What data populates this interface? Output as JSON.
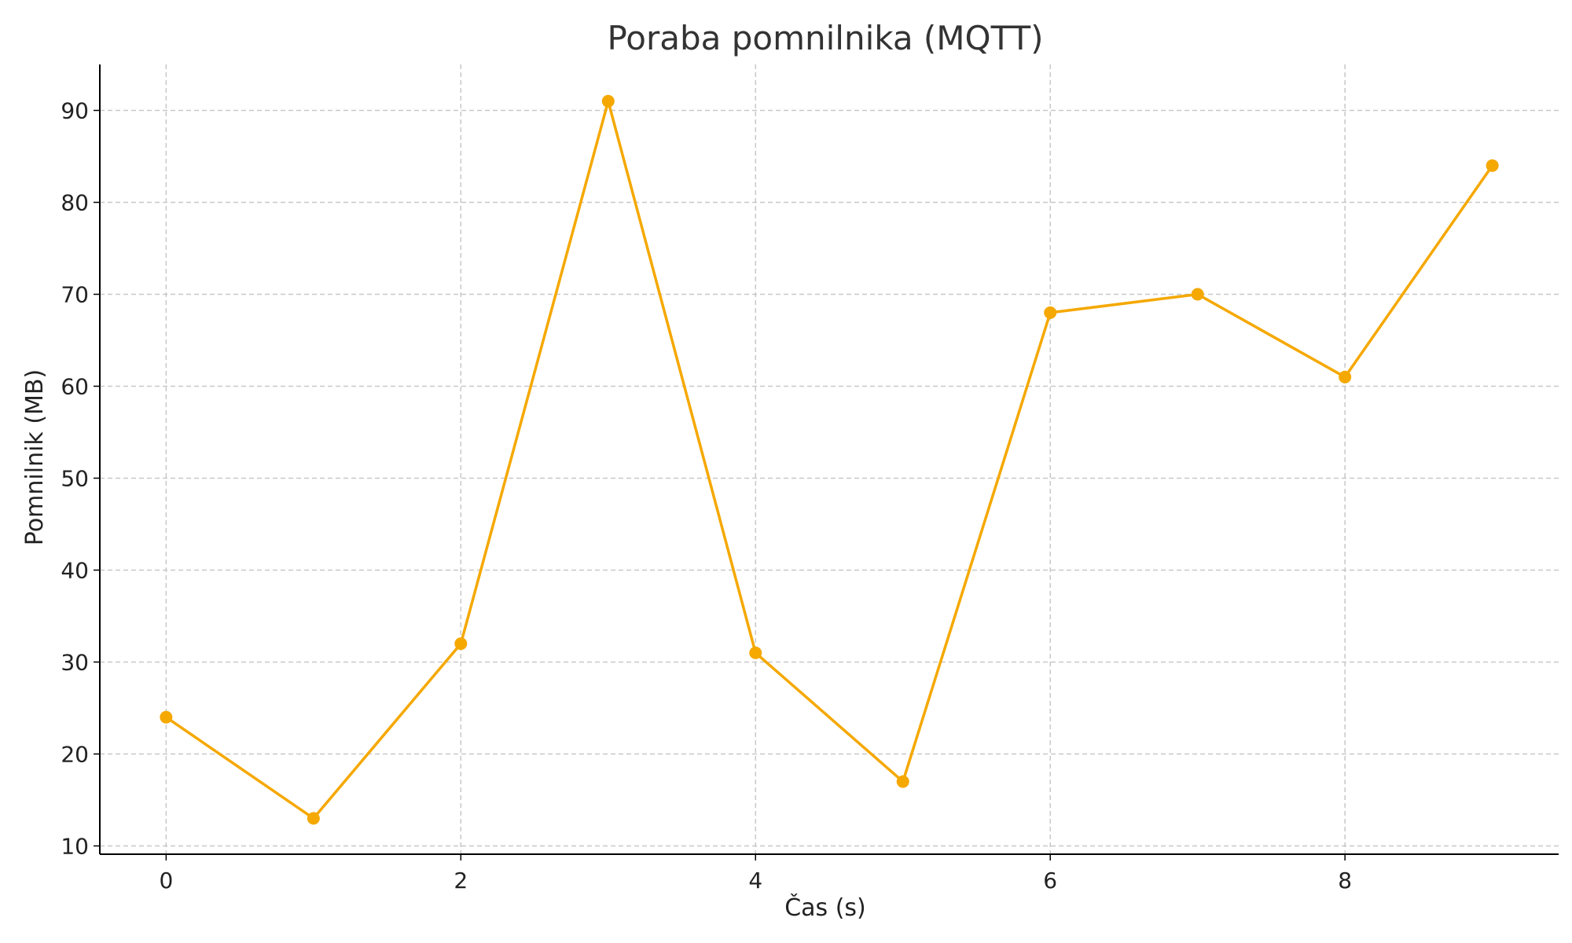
{
  "chart_data": {
    "type": "line",
    "title": "Poraba pomnilnika (MQTT)",
    "xlabel": "Čas (s)",
    "ylabel": "Pomnilnik (MB)",
    "x": [
      0,
      1,
      2,
      3,
      4,
      5,
      6,
      7,
      8,
      9
    ],
    "series": [
      {
        "values": [
          24,
          13,
          32,
          91,
          31,
          17,
          68,
          70,
          61,
          84
        ],
        "color": "#f5a800",
        "marker": "circle"
      }
    ],
    "xlim": [
      -0.45,
      9.45
    ],
    "ylim": [
      9.1,
      95
    ],
    "xticks": [
      "0",
      "2",
      "4",
      "6",
      "8"
    ],
    "yticks": [
      "10",
      "20",
      "30",
      "40",
      "50",
      "60",
      "70",
      "80",
      "90"
    ],
    "grid": true,
    "legend": "none"
  }
}
